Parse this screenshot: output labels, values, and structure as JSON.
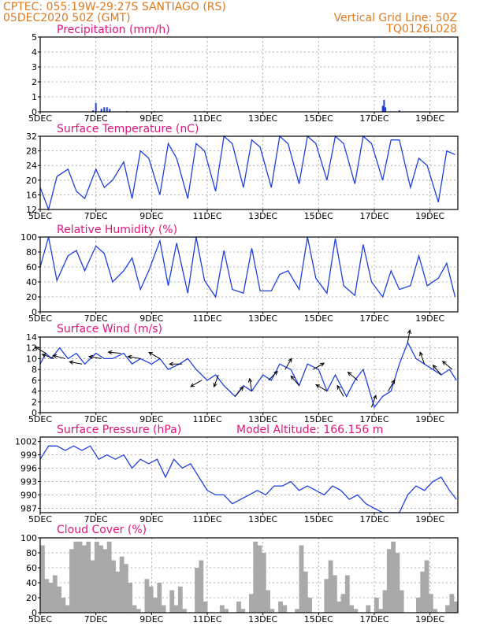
{
  "header": {
    "line1": "CPTEC:   055:19W-29:27S   SANTIAGO (RS)",
    "line2": "05DEC2020 50Z (GMT)",
    "grid_note": "Vertical Grid Line: 50Z",
    "code": "TQ0126L028"
  },
  "colors": {
    "header": "#e07a1f",
    "title": "#e0157a",
    "series": "#1f3fe0",
    "cloud": "#a9a9a9"
  },
  "x_ticks": [
    "5DEC",
    "7DEC",
    "9DEC",
    "11DEC",
    "13DEC",
    "15DEC",
    "17DEC",
    "19DEC"
  ],
  "chart_data": [
    {
      "type": "bar",
      "title": "Precipitation (mm/h)",
      "ylim": [
        0,
        5
      ],
      "yticks": [
        0,
        1,
        2,
        3,
        4,
        5
      ],
      "x": [
        6.9,
        7.0,
        7.2,
        7.3,
        7.4,
        7.5,
        8.1,
        9.1,
        10.9,
        17.3,
        17.35,
        17.4,
        17.9
      ],
      "values": [
        0.1,
        0.6,
        0.2,
        0.3,
        0.3,
        0.2,
        0.05,
        0.05,
        0.05,
        0.4,
        0.8,
        0.3,
        0.1
      ]
    },
    {
      "type": "line",
      "title": "Surface Temperature (nC)",
      "ylim": [
        12,
        32
      ],
      "yticks": [
        12,
        16,
        20,
        24,
        28,
        32
      ],
      "x": [
        5.0,
        5.3,
        5.6,
        6.0,
        6.3,
        6.6,
        7.0,
        7.3,
        7.6,
        8.0,
        8.3,
        8.6,
        8.9,
        9.3,
        9.6,
        9.9,
        10.3,
        10.6,
        10.9,
        11.3,
        11.6,
        11.9,
        12.3,
        12.6,
        12.9,
        13.3,
        13.6,
        13.9,
        14.3,
        14.6,
        14.9,
        15.3,
        15.6,
        15.9,
        16.3,
        16.6,
        16.9,
        17.3,
        17.6,
        17.9,
        18.3,
        18.6,
        18.9,
        19.3,
        19.6,
        19.9
      ],
      "values": [
        18,
        12,
        21,
        23,
        17,
        15,
        23,
        18,
        20,
        25,
        15,
        28,
        26,
        16,
        30,
        26,
        15,
        30,
        28,
        17,
        32,
        30,
        18,
        31,
        29,
        18,
        32,
        30,
        19,
        32,
        30,
        20,
        32,
        30,
        19,
        32,
        30,
        20,
        31,
        31,
        18,
        26,
        24,
        14,
        28,
        27
      ]
    },
    {
      "type": "line",
      "title": "Relative Humidity (%)",
      "ylim": [
        0,
        100
      ],
      "yticks": [
        0,
        20,
        40,
        60,
        80,
        100
      ],
      "x": [
        5.0,
        5.3,
        5.6,
        6.0,
        6.3,
        6.6,
        7.0,
        7.3,
        7.6,
        8.0,
        8.3,
        8.6,
        8.9,
        9.3,
        9.6,
        9.9,
        10.3,
        10.6,
        10.9,
        11.3,
        11.6,
        11.9,
        12.3,
        12.6,
        12.9,
        13.3,
        13.6,
        13.9,
        14.3,
        14.6,
        14.9,
        15.3,
        15.6,
        15.9,
        16.3,
        16.6,
        16.9,
        17.3,
        17.6,
        17.9,
        18.3,
        18.6,
        18.9,
        19.3,
        19.6,
        19.9
      ],
      "values": [
        60,
        100,
        42,
        75,
        82,
        55,
        88,
        78,
        40,
        55,
        72,
        30,
        55,
        95,
        35,
        92,
        25,
        100,
        42,
        20,
        82,
        30,
        25,
        85,
        28,
        28,
        50,
        55,
        30,
        100,
        45,
        25,
        98,
        35,
        22,
        90,
        40,
        20,
        55,
        30,
        35,
        75,
        35,
        45,
        65,
        20
      ]
    },
    {
      "type": "line",
      "title": "Surface Wind (m/s)",
      "ylim": [
        0,
        14
      ],
      "yticks": [
        0,
        2,
        4,
        6,
        8,
        10,
        12,
        14
      ],
      "x": [
        5.0,
        5.2,
        5.4,
        5.7,
        6.0,
        6.3,
        6.6,
        7.0,
        7.3,
        7.6,
        8.0,
        8.3,
        8.6,
        9.0,
        9.3,
        9.6,
        10.0,
        10.3,
        10.6,
        11.0,
        11.3,
        11.6,
        12.0,
        12.3,
        12.6,
        13.0,
        13.3,
        13.6,
        14.0,
        14.3,
        14.6,
        15.0,
        15.3,
        15.6,
        16.0,
        16.3,
        16.6,
        17.0,
        17.3,
        17.6,
        17.9,
        18.2,
        18.5,
        18.8,
        19.1,
        19.4,
        19.7,
        19.95
      ],
      "values": [
        9,
        11,
        10,
        12,
        10,
        11,
        9,
        11,
        10,
        10,
        11,
        9,
        10,
        9,
        10,
        8,
        9,
        10,
        8,
        6,
        7,
        5,
        3,
        5,
        4,
        7,
        6,
        9,
        8,
        5,
        9,
        8,
        4,
        7,
        3,
        6,
        8,
        1,
        3,
        4,
        9,
        13,
        10,
        9,
        8,
        7,
        8,
        6
      ],
      "vectors": [
        {
          "x": 5.2,
          "dir": 300
        },
        {
          "x": 5.5,
          "dir": 290
        },
        {
          "x": 5.9,
          "dir": 285
        },
        {
          "x": 6.5,
          "dir": 280
        },
        {
          "x": 7.2,
          "dir": 280
        },
        {
          "x": 7.9,
          "dir": 275
        },
        {
          "x": 8.6,
          "dir": 280
        },
        {
          "x": 9.3,
          "dir": 300
        },
        {
          "x": 10.1,
          "dir": 270
        },
        {
          "x": 10.8,
          "dir": 240
        },
        {
          "x": 11.4,
          "dir": 200
        },
        {
          "x": 12.0,
          "dir": 40
        },
        {
          "x": 12.6,
          "dir": 350
        },
        {
          "x": 13.2,
          "dir": 45
        },
        {
          "x": 13.8,
          "dir": 30
        },
        {
          "x": 14.3,
          "dir": 320
        },
        {
          "x": 14.8,
          "dir": 60
        },
        {
          "x": 15.3,
          "dir": 300
        },
        {
          "x": 15.9,
          "dir": 330
        },
        {
          "x": 16.4,
          "dir": 310
        },
        {
          "x": 16.9,
          "dir": 20
        },
        {
          "x": 17.5,
          "dir": 30
        },
        {
          "x": 18.2,
          "dir": 10
        },
        {
          "x": 18.8,
          "dir": 340
        },
        {
          "x": 19.4,
          "dir": 320
        },
        {
          "x": 19.8,
          "dir": 310
        }
      ]
    },
    {
      "type": "line",
      "title": "Surface Pressure (hPa)",
      "subtitle": "Model Altitude: 166.156 m",
      "ylim": [
        986,
        1003
      ],
      "yticks": [
        987,
        990,
        993,
        996,
        999,
        1002
      ],
      "x": [
        5.0,
        5.3,
        5.6,
        5.9,
        6.2,
        6.5,
        6.8,
        7.1,
        7.4,
        7.7,
        8.0,
        8.3,
        8.6,
        8.9,
        9.2,
        9.5,
        9.8,
        10.1,
        10.4,
        10.7,
        11.0,
        11.3,
        11.6,
        11.9,
        12.2,
        12.5,
        12.8,
        13.1,
        13.4,
        13.7,
        14.0,
        14.3,
        14.6,
        14.9,
        15.2,
        15.5,
        15.8,
        16.1,
        16.4,
        16.7,
        17.0,
        17.3,
        17.6,
        17.9,
        18.2,
        18.5,
        18.8,
        19.1,
        19.4,
        19.7,
        19.95
      ],
      "values": [
        998,
        1001,
        1001,
        1000,
        1001,
        1000,
        1001,
        998,
        999,
        998,
        999,
        996,
        998,
        997,
        998,
        994,
        998,
        996,
        997,
        994,
        991,
        990,
        990,
        988,
        989,
        990,
        991,
        990,
        992,
        992,
        993,
        991,
        992,
        991,
        990,
        992,
        991,
        989,
        990,
        988,
        987,
        986,
        985,
        986,
        990,
        992,
        991,
        993,
        994,
        991,
        989
      ]
    },
    {
      "type": "bar",
      "title": "Cloud Cover (%)",
      "ylim": [
        0,
        100
      ],
      "yticks": [
        0,
        20,
        40,
        60,
        80,
        100
      ],
      "x": [
        5.0,
        5.15,
        5.3,
        5.45,
        5.6,
        5.75,
        5.9,
        6.05,
        6.2,
        6.35,
        6.5,
        6.65,
        6.8,
        6.95,
        7.1,
        7.25,
        7.4,
        7.55,
        7.7,
        7.85,
        8.0,
        8.15,
        8.3,
        8.45,
        8.6,
        8.75,
        8.9,
        9.05,
        9.2,
        9.35,
        9.5,
        9.65,
        9.8,
        9.95,
        10.1,
        10.25,
        10.4,
        10.55,
        10.7,
        10.85,
        11.0,
        11.15,
        11.3,
        11.45,
        11.6,
        11.75,
        11.9,
        12.05,
        12.2,
        12.35,
        12.5,
        12.65,
        12.8,
        12.95,
        13.1,
        13.25,
        13.4,
        13.55,
        13.7,
        13.85,
        14.0,
        14.15,
        14.3,
        14.45,
        14.6,
        14.75,
        14.9,
        15.05,
        15.2,
        15.35,
        15.5,
        15.65,
        15.8,
        15.95,
        16.1,
        16.25,
        16.4,
        16.55,
        16.7,
        16.85,
        17.0,
        17.15,
        17.3,
        17.45,
        17.6,
        17.75,
        17.9,
        18.05,
        18.2,
        18.35,
        18.5,
        18.65,
        18.8,
        18.95,
        19.1,
        19.25,
        19.4,
        19.55,
        19.7,
        19.85
      ],
      "values": [
        90,
        45,
        40,
        50,
        35,
        20,
        10,
        85,
        95,
        95,
        90,
        95,
        70,
        95,
        90,
        85,
        95,
        70,
        55,
        75,
        65,
        40,
        10,
        5,
        0,
        45,
        35,
        20,
        40,
        10,
        0,
        30,
        10,
        35,
        5,
        0,
        0,
        60,
        70,
        15,
        0,
        0,
        0,
        10,
        5,
        0,
        0,
        15,
        5,
        0,
        25,
        95,
        90,
        80,
        30,
        5,
        0,
        15,
        10,
        0,
        0,
        5,
        90,
        55,
        20,
        0,
        0,
        0,
        45,
        70,
        50,
        15,
        25,
        50,
        10,
        5,
        0,
        0,
        10,
        0,
        20,
        5,
        30,
        85,
        95,
        80,
        30,
        0,
        0,
        0,
        20,
        55,
        70,
        25,
        5,
        0,
        0,
        10,
        25,
        15
      ]
    }
  ]
}
